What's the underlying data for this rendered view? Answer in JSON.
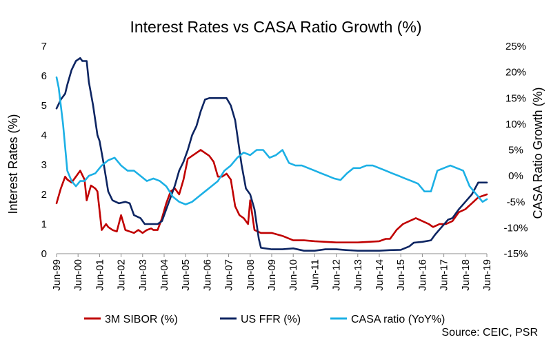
{
  "chart_data": {
    "type": "line",
    "title": "Interest Rates vs CASA Ratio Growth (%)",
    "ylabel_left": "Interest Rates (%)",
    "ylabel_right": "CASA Ratio Growth (%)",
    "ylim_left": [
      0,
      7
    ],
    "ylim_right": [
      -15,
      25
    ],
    "xlim": [
      1999.5,
      2019.5
    ],
    "left_ticks": [
      "0",
      "1",
      "2",
      "3",
      "4",
      "5",
      "6",
      "7"
    ],
    "right_ticks": [
      "-15%",
      "-10%",
      "-5%",
      "0%",
      "5%",
      "10%",
      "15%",
      "20%",
      "25%"
    ],
    "x_ticks": [
      "Jun-99",
      "Jun-00",
      "Jun-01",
      "Jun-02",
      "Jun-03",
      "Jun-04",
      "Jun-05",
      "Jun-06",
      "Jun-07",
      "Jun-08",
      "Jun-09",
      "Jun-10",
      "Jun-11",
      "Jun-12",
      "Jun-13",
      "Jun-14",
      "Jun-15",
      "Jun-16",
      "Jun-17",
      "Jun-18",
      "Jun-19"
    ],
    "grid": false,
    "legend_position": "bottom",
    "source": "Source: CEIC, PSR",
    "series": [
      {
        "name": "3M SIBOR (%)",
        "axis": "left",
        "color": "#C00000",
        "x": [
          1999.5,
          1999.7,
          1999.9,
          2000.0,
          2000.2,
          2000.4,
          2000.6,
          2000.8,
          2000.9,
          2001.1,
          2001.3,
          2001.4,
          2001.6,
          2001.8,
          2001.9,
          2002.1,
          2002.3,
          2002.5,
          2002.7,
          2002.9,
          2003.1,
          2003.3,
          2003.5,
          2003.7,
          2003.9,
          2004.0,
          2004.2,
          2004.4,
          2004.6,
          2004.8,
          2005.0,
          2005.2,
          2005.4,
          2005.6,
          2005.8,
          2006.0,
          2006.2,
          2006.4,
          2006.6,
          2006.8,
          2007.0,
          2007.2,
          2007.4,
          2007.6,
          2007.8,
          2008.0,
          2008.2,
          2008.4,
          2008.5,
          2008.7,
          2009.0,
          2009.5,
          2010.0,
          2010.5,
          2011.0,
          2011.5,
          2012.0,
          2012.5,
          2013.0,
          2013.5,
          2014.0,
          2014.5,
          2014.8,
          2015.0,
          2015.3,
          2015.6,
          2015.9,
          2016.2,
          2016.5,
          2016.8,
          2017.0,
          2017.3,
          2017.6,
          2017.9,
          2018.2,
          2018.5,
          2018.8,
          2019.1,
          2019.5
        ],
        "y": [
          1.7,
          2.2,
          2.6,
          2.5,
          2.4,
          2.6,
          2.8,
          2.5,
          1.8,
          2.3,
          2.2,
          2.1,
          0.8,
          1.0,
          0.9,
          0.8,
          0.75,
          1.3,
          0.8,
          0.75,
          0.7,
          0.8,
          0.7,
          0.8,
          0.85,
          0.8,
          0.8,
          1.2,
          1.7,
          2.1,
          2.2,
          2.0,
          2.5,
          3.2,
          3.3,
          3.4,
          3.5,
          3.4,
          3.3,
          3.1,
          2.6,
          2.6,
          2.7,
          2.5,
          1.6,
          1.3,
          1.2,
          1.0,
          1.8,
          0.8,
          0.7,
          0.7,
          0.6,
          0.45,
          0.45,
          0.42,
          0.4,
          0.38,
          0.38,
          0.38,
          0.4,
          0.42,
          0.5,
          0.5,
          0.8,
          1.0,
          1.1,
          1.2,
          1.1,
          1.0,
          0.9,
          1.0,
          1.0,
          1.1,
          1.4,
          1.5,
          1.7,
          1.9,
          2.0
        ]
      },
      {
        "name": "US FFR (%)",
        "axis": "left",
        "color": "#0D2562",
        "x": [
          1999.5,
          1999.7,
          1999.9,
          2000.0,
          2000.2,
          2000.4,
          2000.6,
          2000.7,
          2000.9,
          2001.0,
          2001.2,
          2001.4,
          2001.5,
          2001.7,
          2001.9,
          2002.1,
          2002.4,
          2002.7,
          2002.9,
          2003.1,
          2003.4,
          2003.6,
          2003.9,
          2004.2,
          2004.4,
          2004.6,
          2004.8,
          2005.0,
          2005.2,
          2005.4,
          2005.6,
          2005.8,
          2006.0,
          2006.2,
          2006.4,
          2006.6,
          2006.8,
          2007.0,
          2007.2,
          2007.4,
          2007.6,
          2007.8,
          2008.0,
          2008.1,
          2008.3,
          2008.5,
          2008.7,
          2008.9,
          2009.0,
          2009.5,
          2010.0,
          2010.5,
          2011.0,
          2011.5,
          2012.0,
          2012.5,
          2013.0,
          2013.5,
          2014.0,
          2014.5,
          2015.0,
          2015.5,
          2015.9,
          2016.1,
          2016.5,
          2016.9,
          2017.1,
          2017.4,
          2017.7,
          2017.9,
          2018.2,
          2018.5,
          2018.8,
          2019.1,
          2019.5
        ],
        "y": [
          4.9,
          5.2,
          5.4,
          5.7,
          6.2,
          6.5,
          6.6,
          6.5,
          6.5,
          5.8,
          5.0,
          4.0,
          3.8,
          3.0,
          2.1,
          1.8,
          1.7,
          1.75,
          1.7,
          1.3,
          1.2,
          1.0,
          1.0,
          1.0,
          1.1,
          1.5,
          1.9,
          2.3,
          2.8,
          3.1,
          3.5,
          4.0,
          4.3,
          4.8,
          5.2,
          5.25,
          5.25,
          5.25,
          5.25,
          5.25,
          5.0,
          4.5,
          3.5,
          3.0,
          2.2,
          2.0,
          1.5,
          0.5,
          0.2,
          0.15,
          0.15,
          0.18,
          0.1,
          0.1,
          0.15,
          0.15,
          0.12,
          0.1,
          0.1,
          0.1,
          0.12,
          0.13,
          0.25,
          0.37,
          0.4,
          0.45,
          0.65,
          0.9,
          1.15,
          1.2,
          1.5,
          1.75,
          2.0,
          2.4,
          2.4
        ]
      },
      {
        "name": "CASA ratio (YoY%)",
        "axis": "right",
        "color": "#1CB0E5",
        "x": [
          1999.5,
          1999.6,
          1999.8,
          2000.0,
          2000.2,
          2000.4,
          2000.6,
          2000.8,
          2001.0,
          2001.3,
          2001.6,
          2001.9,
          2002.2,
          2002.5,
          2002.8,
          2003.1,
          2003.4,
          2003.7,
          2004.0,
          2004.3,
          2004.6,
          2004.9,
          2005.2,
          2005.5,
          2005.8,
          2006.1,
          2006.4,
          2006.7,
          2007.0,
          2007.3,
          2007.6,
          2007.9,
          2008.2,
          2008.5,
          2008.8,
          2009.1,
          2009.4,
          2009.7,
          2010.0,
          2010.3,
          2010.6,
          2010.9,
          2011.2,
          2011.5,
          2011.8,
          2012.1,
          2012.4,
          2012.7,
          2013.0,
          2013.3,
          2013.6,
          2013.9,
          2014.2,
          2014.5,
          2014.8,
          2015.1,
          2015.4,
          2015.7,
          2016.0,
          2016.3,
          2016.6,
          2016.9,
          2017.2,
          2017.5,
          2017.8,
          2018.1,
          2018.4,
          2018.7,
          2019.0,
          2019.3,
          2019.5
        ],
        "y": [
          19.0,
          17.0,
          10.0,
          1.0,
          -1.0,
          -2.0,
          -1.0,
          -1.0,
          0.0,
          0.5,
          2.0,
          3.0,
          3.5,
          2.0,
          1.0,
          1.0,
          0.0,
          -1.0,
          -0.5,
          -1.0,
          -2.0,
          -4.0,
          -5.0,
          -5.5,
          -5.0,
          -4.0,
          -3.0,
          -2.0,
          -1.0,
          1.0,
          2.0,
          3.5,
          4.5,
          4.0,
          5.0,
          5.0,
          3.5,
          4.0,
          5.0,
          2.5,
          2.0,
          2.0,
          1.5,
          1.0,
          0.5,
          0.0,
          -0.5,
          -0.8,
          0.5,
          1.5,
          1.5,
          2.0,
          2.0,
          1.5,
          1.0,
          0.5,
          0.0,
          -0.5,
          -1.0,
          -1.5,
          -3.0,
          -3.0,
          1.0,
          1.5,
          2.0,
          1.5,
          1.0,
          -2.0,
          -3.5,
          -5.0,
          -4.5
        ]
      }
    ]
  }
}
